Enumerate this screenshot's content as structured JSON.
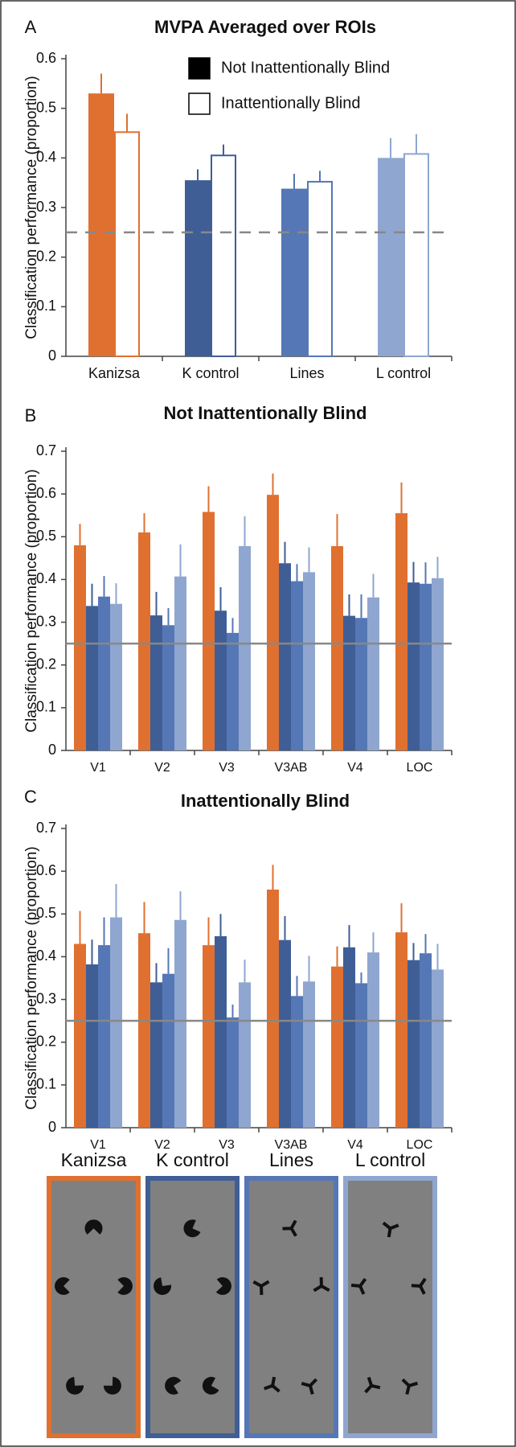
{
  "chart_data": [
    {
      "type": "bar",
      "panel": "A",
      "title": "MVPA Averaged over ROIs",
      "y_label": "Classification performance (proportion)",
      "categories": [
        "Kanizsa",
        "K control",
        "Lines",
        "L control"
      ],
      "category_colors": [
        "#e07030",
        "#3f5e96",
        "#5577b5",
        "#8fa6d0"
      ],
      "series": [
        {
          "name": "Not Inattentionally Blind",
          "color": "#000000",
          "fill": "solid",
          "values": [
            0.53,
            0.355,
            0.338,
            0.4
          ],
          "errors": [
            0.04,
            0.022,
            0.03,
            0.04
          ]
        },
        {
          "name": "Inattentionally Blind",
          "color": "#ffffff",
          "fill": "outline",
          "values": [
            0.452,
            0.405,
            0.352,
            0.408
          ],
          "errors": [
            0.037,
            0.022,
            0.022,
            0.04
          ]
        }
      ],
      "ylim": [
        0,
        0.6
      ],
      "yticks": [
        0,
        0.1,
        0.2,
        0.3,
        0.4,
        0.5,
        0.6
      ],
      "chance": 0.25,
      "chance_style": "dashed",
      "legend": "top-right"
    },
    {
      "type": "bar",
      "panel": "B",
      "title": "Not Inattentionally Blind",
      "y_label": "Classification performance (proportion)",
      "categories": [
        "V1",
        "V2",
        "V3",
        "V3AB",
        "V4",
        "LOC"
      ],
      "series": [
        {
          "name": "Kanizsa",
          "color": "#e07030",
          "values": [
            0.48,
            0.51,
            0.558,
            0.598,
            0.478,
            0.555
          ],
          "errors": [
            0.05,
            0.045,
            0.06,
            0.05,
            0.075,
            0.072
          ]
        },
        {
          "name": "K control",
          "color": "#3f5e96",
          "values": [
            0.338,
            0.316,
            0.327,
            0.438,
            0.315,
            0.393
          ],
          "errors": [
            0.052,
            0.055,
            0.055,
            0.05,
            0.05,
            0.048
          ]
        },
        {
          "name": "Lines",
          "color": "#5577b5",
          "values": [
            0.36,
            0.293,
            0.275,
            0.396,
            0.31,
            0.39
          ],
          "errors": [
            0.048,
            0.04,
            0.035,
            0.04,
            0.055,
            0.05
          ]
        },
        {
          "name": "L control",
          "color": "#8fa6d0",
          "values": [
            0.343,
            0.407,
            0.478,
            0.417,
            0.358,
            0.403
          ],
          "errors": [
            0.048,
            0.075,
            0.07,
            0.058,
            0.055,
            0.05
          ]
        }
      ],
      "ylim": [
        0,
        0.7
      ],
      "yticks": [
        0,
        0.1,
        0.2,
        0.3,
        0.4,
        0.5,
        0.6,
        0.7
      ],
      "chance": 0.25,
      "chance_style": "solid"
    },
    {
      "type": "bar",
      "panel": "C",
      "title": "Inattentionally Blind",
      "y_label": "Classification performance (proportion)",
      "categories": [
        "V1",
        "V2",
        "V3",
        "V3AB",
        "V4",
        "LOC"
      ],
      "series": [
        {
          "color": "#e07030",
          "values": [
            0.43,
            0.455,
            0.427,
            0.557,
            0.377,
            0.457
          ],
          "errors": [
            0.077,
            0.073,
            0.065,
            0.058,
            0.047,
            0.068
          ]
        },
        {
          "color": "#3f5e96",
          "values": [
            0.382,
            0.34,
            0.448,
            0.439,
            0.422,
            0.392
          ],
          "errors": [
            0.058,
            0.045,
            0.052,
            0.056,
            0.052,
            0.04
          ]
        },
        {
          "color": "#5577b5",
          "values": [
            0.427,
            0.36,
            0.258,
            0.308,
            0.338,
            0.408
          ],
          "errors": [
            0.065,
            0.06,
            0.03,
            0.047,
            0.025,
            0.045
          ]
        },
        {
          "color": "#8fa6d0",
          "values": [
            0.492,
            0.486,
            0.34,
            0.342,
            0.41,
            0.37
          ],
          "errors": [
            0.078,
            0.067,
            0.053,
            0.06,
            0.047,
            0.06
          ]
        }
      ],
      "ylim": [
        0,
        0.7
      ],
      "yticks": [
        0,
        0.1,
        0.2,
        0.3,
        0.4,
        0.5,
        0.6,
        0.7
      ],
      "chance": 0.25,
      "chance_style": "solid"
    }
  ]
}
